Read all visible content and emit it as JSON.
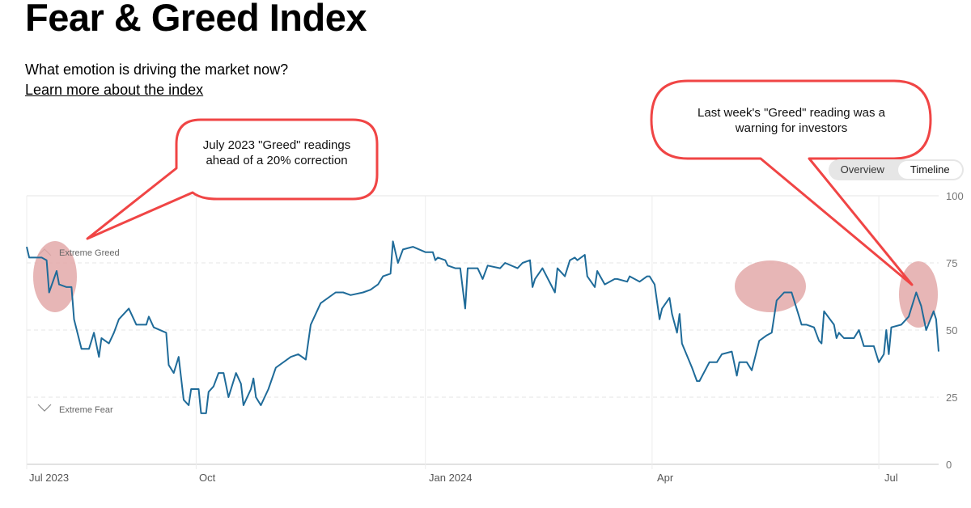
{
  "header": {
    "title": "Fear & Greed Index",
    "subtitle": "What emotion is driving the market now?",
    "learn_more_link": "Learn more about the index"
  },
  "toggle": {
    "options": [
      "Overview",
      "Timeline"
    ],
    "selected": "Timeline"
  },
  "annotations": {
    "left_callout": "July 2023 \"Greed\" readings ahead of a 20% correction",
    "right_callout": "Last week's \"Greed\" reading was a warning for investors"
  },
  "colors": {
    "line": "#1f6b99",
    "callout": "#f04545",
    "highlight": "#e3a9a9"
  },
  "chart_data": {
    "type": "line",
    "title": "Fear & Greed Index",
    "xlabel": "",
    "ylabel": "",
    "x_unit": "days since 2023-10-01",
    "xlim": [
      -68,
      298
    ],
    "ylim": [
      0,
      100
    ],
    "yticks": [
      0,
      25,
      50,
      75,
      100
    ],
    "xticks": [
      {
        "x": -68,
        "label": "Jul 2023"
      },
      {
        "x": 0,
        "label": "Oct"
      },
      {
        "x": 92,
        "label": "Jan 2024"
      },
      {
        "x": 183,
        "label": "Apr"
      },
      {
        "x": 274,
        "label": "Jul"
      }
    ],
    "zone_labels": {
      "greed": "Extreme Greed",
      "fear": "Extreme Fear"
    },
    "grid": true,
    "x": [
      -68,
      -67,
      -64,
      -62,
      -60,
      -59,
      -56,
      -55,
      -52,
      -50,
      -49,
      -46,
      -43,
      -41,
      -39,
      -38,
      -35,
      -33,
      -31,
      -27,
      -24,
      -20,
      -19,
      -17,
      -12,
      -11,
      -9,
      -7,
      -5,
      -3,
      -2,
      1,
      2,
      4,
      5,
      7,
      9,
      11,
      13,
      16,
      18,
      19,
      22,
      23,
      24,
      26,
      29,
      32,
      38,
      41,
      44,
      46,
      50,
      56,
      59,
      62,
      67,
      70,
      73,
      75,
      78,
      79,
      81,
      83,
      87,
      92,
      95,
      96,
      97,
      100,
      101,
      104,
      106,
      108,
      109,
      113,
      115,
      117,
      122,
      124,
      129,
      131,
      134,
      135,
      136,
      139,
      144,
      145,
      148,
      150,
      152,
      153,
      156,
      157,
      160,
      161,
      164,
      168,
      169,
      173,
      174,
      178,
      181,
      182,
      184,
      186,
      187,
      190,
      191,
      193,
      194,
      195,
      199,
      201,
      202,
      206,
      209,
      211,
      215,
      217,
      218,
      221,
      223,
      226,
      229,
      231,
      233,
      236,
      239,
      242,
      243,
      245,
      248,
      250,
      251,
      252,
      256,
      257,
      258,
      260,
      264,
      266,
      268,
      272,
      274,
      276,
      277,
      278,
      279,
      283,
      285,
      286,
      289,
      291,
      293,
      296,
      297,
      298
    ],
    "values": [
      81,
      77,
      77,
      77,
      76,
      64,
      72,
      67,
      66,
      66,
      54,
      43,
      43,
      49,
      40,
      47,
      45,
      49,
      54,
      58,
      52,
      52,
      55,
      51,
      49,
      37,
      34,
      40,
      24,
      22,
      28,
      28,
      19,
      19,
      27,
      29,
      34,
      34,
      25,
      34,
      30,
      22,
      28,
      32,
      25,
      22,
      28,
      36,
      40,
      41,
      39,
      52,
      60,
      64,
      64,
      63,
      64,
      65,
      67,
      70,
      71,
      83,
      75,
      80,
      81,
      79,
      79,
      76,
      77,
      76,
      74,
      73,
      73,
      58,
      73,
      73,
      69,
      74,
      73,
      75,
      73,
      75,
      76,
      66,
      69,
      73,
      64,
      73,
      70,
      76,
      77,
      76,
      78,
      70,
      66,
      72,
      67,
      69,
      69,
      68,
      70,
      68,
      70,
      70,
      67,
      54,
      58,
      62,
      56,
      49,
      56,
      45,
      36,
      31,
      31,
      38,
      38,
      41,
      42,
      33,
      38,
      38,
      35,
      46,
      48,
      49,
      61,
      64,
      64,
      55,
      52,
      52,
      51,
      46,
      45,
      57,
      52,
      47,
      49,
      47,
      47,
      50,
      44,
      44,
      38,
      41,
      50,
      41,
      51,
      52,
      54,
      55,
      64,
      59,
      50,
      57,
      54,
      42
    ]
  }
}
